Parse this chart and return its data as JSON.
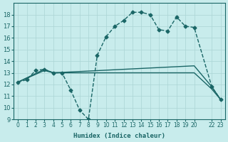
{
  "xlabel": "Humidex (Indice chaleur)",
  "bg_color": "#c8ecec",
  "grid_color": "#aad4d4",
  "line_color": "#1a6666",
  "xlim": [
    -0.5,
    23.5
  ],
  "ylim": [
    9,
    19
  ],
  "yticks": [
    9,
    10,
    11,
    12,
    13,
    14,
    15,
    16,
    17,
    18
  ],
  "xtick_positions": [
    0,
    1,
    2,
    3,
    4,
    5,
    6,
    7,
    8,
    9,
    10,
    11,
    12,
    13,
    14,
    15,
    16,
    17,
    18,
    19,
    20,
    22,
    23
  ],
  "xtick_labels": [
    "0",
    "1",
    "2",
    "3",
    "4",
    "5",
    "6",
    "7",
    "8",
    "9",
    "10",
    "11",
    "12",
    "13",
    "14",
    "15",
    "16",
    "17",
    "18",
    "19",
    "20",
    "22",
    "23"
  ],
  "series": [
    {
      "x": [
        0,
        1,
        2,
        3,
        4,
        5,
        6,
        7,
        8,
        9,
        10,
        11,
        12,
        13,
        14,
        15,
        16,
        17,
        18,
        19,
        20,
        22,
        23
      ],
      "y": [
        12.2,
        12.4,
        13.2,
        13.3,
        13.0,
        13.0,
        11.5,
        9.8,
        9.0,
        14.5,
        16.1,
        17.0,
        17.5,
        18.2,
        18.2,
        18.0,
        16.7,
        16.6,
        17.8,
        17.0,
        16.9,
        11.8,
        10.7
      ],
      "marker": "D",
      "markersize": 2.5,
      "linewidth": 1.0,
      "style": "dashed"
    },
    {
      "x": [
        0,
        3,
        4,
        20,
        22,
        23
      ],
      "y": [
        12.2,
        13.3,
        13.0,
        13.6,
        11.8,
        10.7
      ],
      "marker": null,
      "linewidth": 1.0,
      "style": "solid"
    },
    {
      "x": [
        0,
        3,
        4,
        20,
        22,
        23
      ],
      "y": [
        12.2,
        13.2,
        13.0,
        13.0,
        11.6,
        10.7
      ],
      "marker": null,
      "linewidth": 1.0,
      "style": "solid"
    }
  ]
}
